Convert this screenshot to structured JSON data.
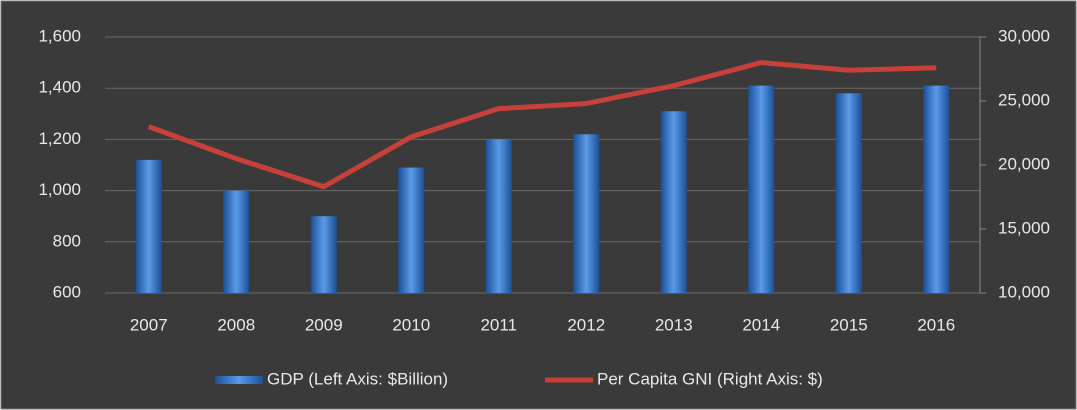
{
  "chart_data": {
    "type": "bar-line",
    "categories": [
      "2007",
      "2008",
      "2009",
      "2010",
      "2011",
      "2012",
      "2013",
      "2014",
      "2015",
      "2016"
    ],
    "series": [
      {
        "name": "GDP (Left Axis: $Billion)",
        "type": "bar",
        "color": "#2f6fc4",
        "values": [
          1120,
          1000,
          900,
          1090,
          1200,
          1220,
          1310,
          1410,
          1380,
          1410
        ]
      },
      {
        "name": "Per Capita GNI (Right Axis: $)",
        "type": "line",
        "axis": "y2",
        "color": "#c8403a",
        "values": [
          23000,
          20500,
          18300,
          22200,
          24400,
          24800,
          26200,
          28000,
          27400,
          27600
        ]
      }
    ],
    "ylim": [
      600,
      1600
    ],
    "yticks": [
      600,
      800,
      {
        "value": 1000,
        "label": "1,000"
      },
      {
        "value": 1200,
        "label": "1,200"
      },
      {
        "value": 1400,
        "label": "1,400"
      },
      {
        "value": 1600,
        "label": "1,600"
      }
    ],
    "y2lim": [
      10000,
      30000
    ],
    "y2ticks": [
      {
        "value": 10000,
        "label": "10,000"
      },
      {
        "value": 15000,
        "label": "15,000"
      },
      {
        "value": 20000,
        "label": "20,000"
      },
      {
        "value": 25000,
        "label": "25,000"
      },
      {
        "value": 30000,
        "label": "30,000"
      }
    ],
    "grid": true,
    "legend": "bottom"
  }
}
